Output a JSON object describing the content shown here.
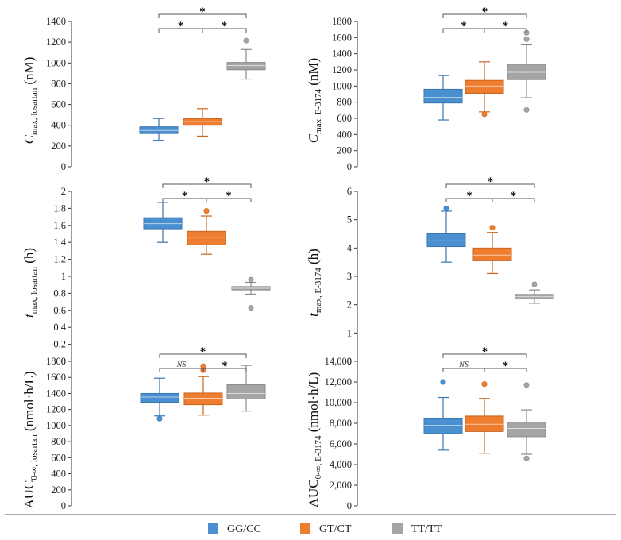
{
  "legend": [
    {
      "label": "GG/CC",
      "color": "#4A90D0"
    },
    {
      "label": "GT/CT",
      "color": "#EE7D30"
    },
    {
      "label": "TT/TT",
      "color": "#A5A5A5"
    }
  ],
  "chart_data": [
    {
      "type": "box",
      "ylabel": {
        "main": "C",
        "sub": "max, losartan",
        "unit": "(nM)"
      },
      "ylim": [
        0,
        1400
      ],
      "ystep": 200,
      "groups": [
        {
          "name": "GG/CC",
          "min": 255,
          "q1": 320,
          "median": 350,
          "q3": 385,
          "max": 465,
          "outliers": []
        },
        {
          "name": "GT/CT",
          "min": 295,
          "q1": 400,
          "median": 435,
          "q3": 465,
          "max": 560,
          "outliers": []
        },
        {
          "name": "TT/TT",
          "min": 845,
          "q1": 935,
          "median": 975,
          "q3": 1005,
          "max": 1130,
          "outliers": [
            1215
          ]
        }
      ],
      "comparisons": [
        {
          "from": 0,
          "to": 1,
          "label": "*"
        },
        {
          "from": 1,
          "to": 2,
          "label": "*"
        },
        {
          "from": 0,
          "to": 2,
          "label": "*"
        }
      ]
    },
    {
      "type": "box",
      "ylabel": {
        "main": "C",
        "sub": "max, E-3174",
        "unit": "(nM)"
      },
      "ylim": [
        0,
        1800
      ],
      "ystep": 200,
      "groups": [
        {
          "name": "GG/CC",
          "min": 580,
          "q1": 790,
          "median": 860,
          "q3": 960,
          "max": 1130,
          "outliers": []
        },
        {
          "name": "GT/CT",
          "min": 680,
          "q1": 910,
          "median": 1000,
          "q3": 1070,
          "max": 1300,
          "outliers": [
            650
          ]
        },
        {
          "name": "TT/TT",
          "min": 855,
          "q1": 1080,
          "median": 1170,
          "q3": 1270,
          "max": 1510,
          "outliers": [
            705,
            1580,
            1660
          ]
        }
      ],
      "comparisons": [
        {
          "from": 0,
          "to": 1,
          "label": "*"
        },
        {
          "from": 1,
          "to": 2,
          "label": "*"
        },
        {
          "from": 0,
          "to": 2,
          "label": "*"
        }
      ]
    },
    {
      "type": "box",
      "ylabel": {
        "main": "t",
        "sub": "max, losartan",
        "unit": "(h)"
      },
      "ylim": [
        0,
        2
      ],
      "ystep": 0.2,
      "groups": [
        {
          "name": "GG/CC",
          "min": 1.4,
          "q1": 1.56,
          "median": 1.62,
          "q3": 1.69,
          "max": 1.87,
          "outliers": []
        },
        {
          "name": "GT/CT",
          "min": 1.26,
          "q1": 1.37,
          "median": 1.46,
          "q3": 1.53,
          "max": 1.71,
          "outliers": [
            1.77
          ]
        },
        {
          "name": "TT/TT",
          "min": 0.79,
          "q1": 0.84,
          "median": 0.86,
          "q3": 0.88,
          "max": 0.93,
          "outliers": [
            0.63,
            0.96
          ]
        }
      ],
      "comparisons": [
        {
          "from": 0,
          "to": 1,
          "label": "*"
        },
        {
          "from": 1,
          "to": 2,
          "label": "*"
        },
        {
          "from": 0,
          "to": 2,
          "label": "*"
        }
      ]
    },
    {
      "type": "box",
      "ylabel": {
        "main": "t",
        "sub": "max, E-3174",
        "unit": "(h)"
      },
      "ylim": [
        0,
        6
      ],
      "ystep": 1,
      "groups": [
        {
          "name": "GG/CC",
          "min": 3.5,
          "q1": 4.05,
          "median": 4.25,
          "q3": 4.5,
          "max": 5.3,
          "outliers": [
            5.4
          ]
        },
        {
          "name": "GT/CT",
          "min": 3.1,
          "q1": 3.55,
          "median": 3.75,
          "q3": 4.0,
          "max": 4.55,
          "outliers": [
            4.72
          ]
        },
        {
          "name": "TT/TT",
          "min": 2.05,
          "q1": 2.2,
          "median": 2.28,
          "q3": 2.36,
          "max": 2.52,
          "outliers": [
            2.72
          ]
        }
      ],
      "comparisons": [
        {
          "from": 0,
          "to": 1,
          "label": "*"
        },
        {
          "from": 1,
          "to": 2,
          "label": "*"
        },
        {
          "from": 0,
          "to": 2,
          "label": "*"
        }
      ]
    },
    {
      "type": "box",
      "ylabel": {
        "main": "AUC",
        "sub": "0-∞, losartan",
        "unit": "(nmol·h/L)"
      },
      "ylim": [
        0,
        1800
      ],
      "ystep": 200,
      "groups": [
        {
          "name": "GG/CC",
          "min": 1120,
          "q1": 1290,
          "median": 1355,
          "q3": 1400,
          "max": 1590,
          "outliers": [
            1085
          ]
        },
        {
          "name": "GT/CT",
          "min": 1130,
          "q1": 1260,
          "median": 1340,
          "q3": 1405,
          "max": 1610,
          "outliers": [
            1690,
            1740
          ]
        },
        {
          "name": "TT/TT",
          "min": 1180,
          "q1": 1330,
          "median": 1400,
          "q3": 1510,
          "max": 1750,
          "outliers": []
        }
      ],
      "comparisons": [
        {
          "from": 0,
          "to": 1,
          "label": "NS"
        },
        {
          "from": 1,
          "to": 2,
          "label": "*"
        },
        {
          "from": 0,
          "to": 2,
          "label": "*"
        }
      ]
    },
    {
      "type": "box",
      "ylabel": {
        "main": "AUC",
        "sub": "0-∞, E-3174",
        "unit": "(nmol·h/L)"
      },
      "ylim": [
        0,
        14000
      ],
      "ystep": 2000,
      "thousands": true,
      "groups": [
        {
          "name": "GG/CC",
          "min": 5400,
          "q1": 7000,
          "median": 7800,
          "q3": 8500,
          "max": 10500,
          "outliers": [
            12000
          ]
        },
        {
          "name": "GT/CT",
          "min": 5100,
          "q1": 7200,
          "median": 7900,
          "q3": 8700,
          "max": 10400,
          "outliers": [
            11800
          ]
        },
        {
          "name": "TT/TT",
          "min": 5000,
          "q1": 6700,
          "median": 7500,
          "q3": 8100,
          "max": 9300,
          "outliers": [
            4600,
            11700
          ]
        }
      ],
      "comparisons": [
        {
          "from": 0,
          "to": 1,
          "label": "NS"
        },
        {
          "from": 1,
          "to": 2,
          "label": "*"
        },
        {
          "from": 0,
          "to": 2,
          "label": "*"
        }
      ]
    }
  ]
}
